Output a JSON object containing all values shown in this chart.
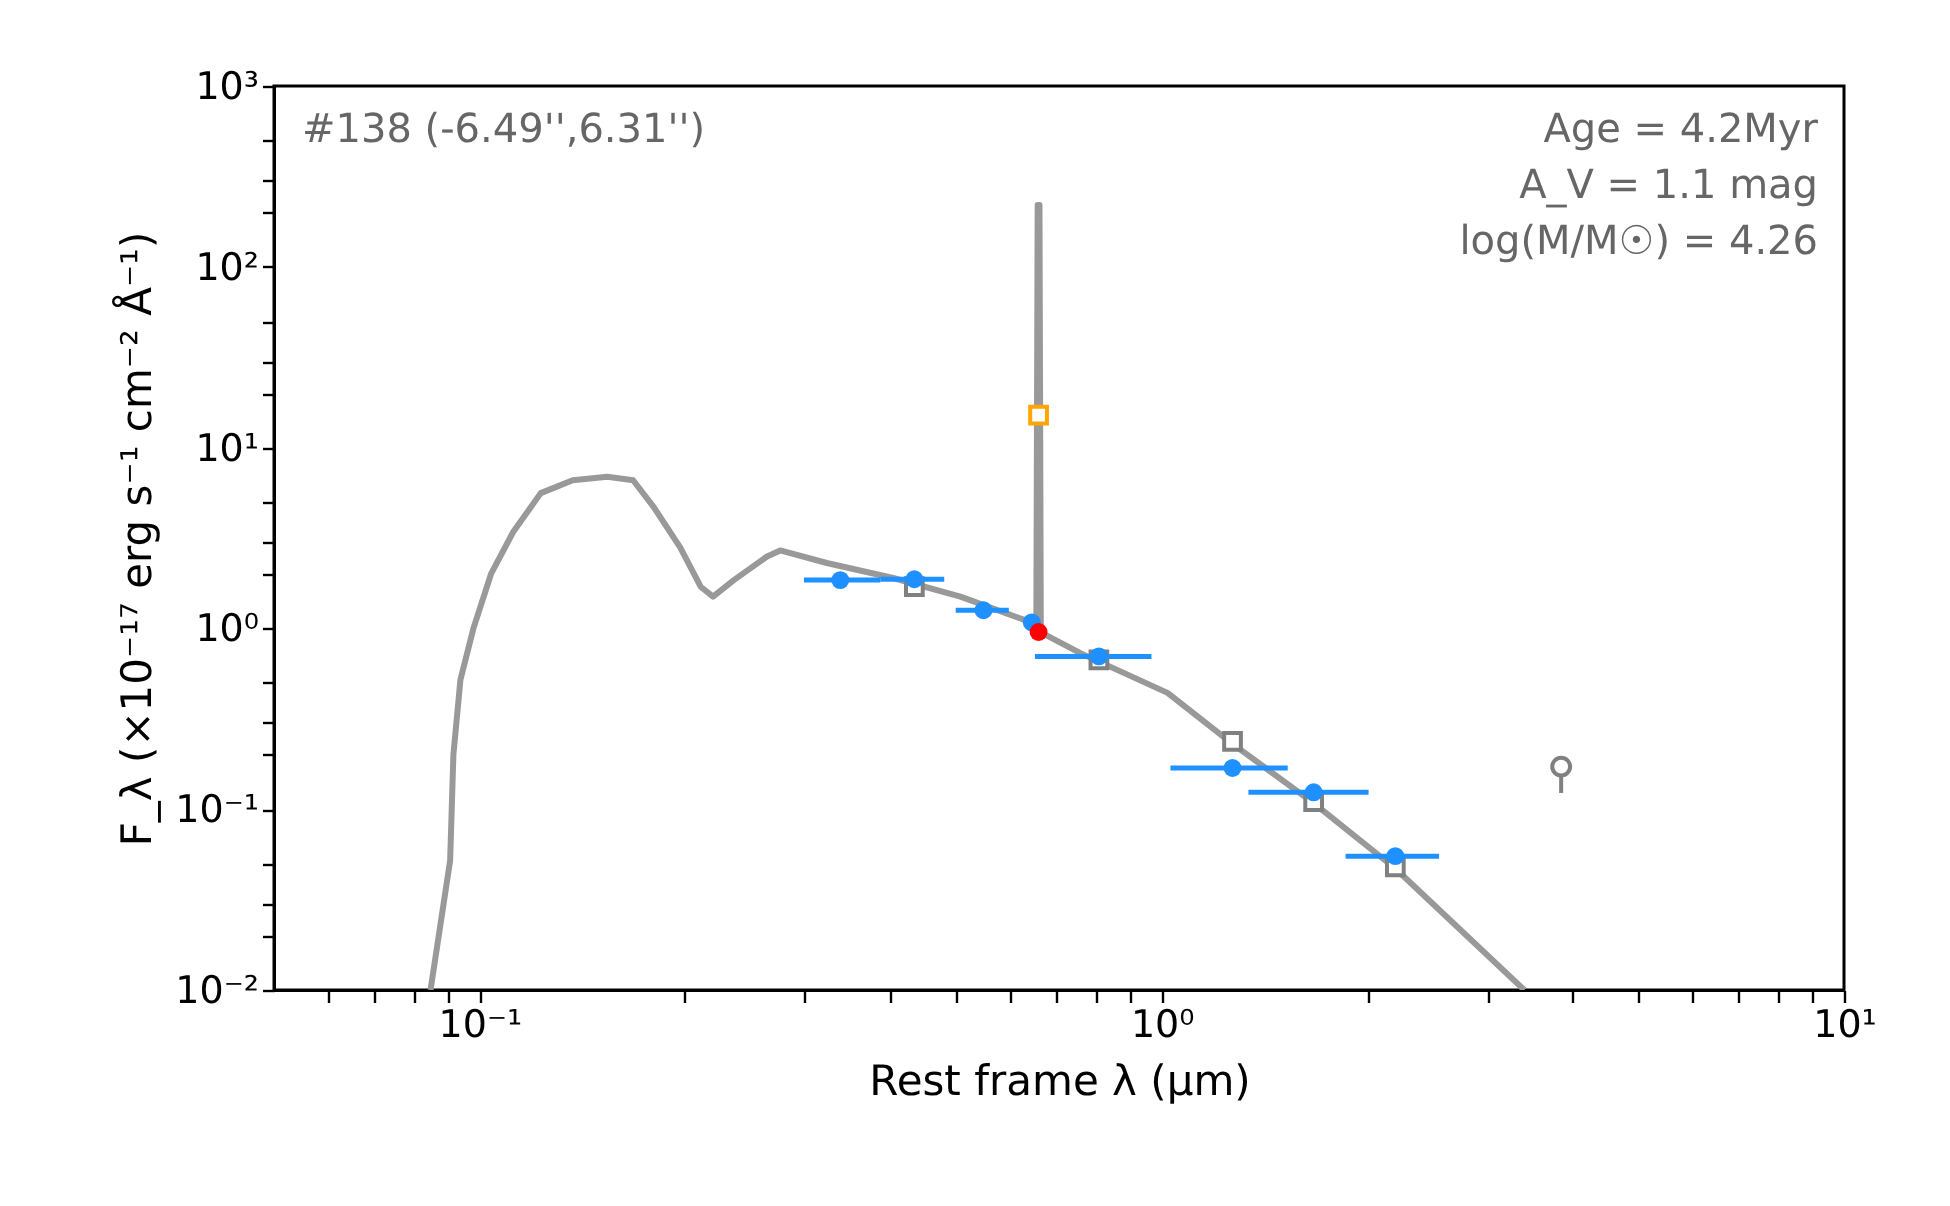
{
  "chart_data": {
    "type": "line",
    "xlabel": "Rest frame λ (μm)",
    "ylabel": "F_λ (×10⁻¹⁷ erg s⁻¹ cm⁻² Å⁻¹)",
    "annotations": [
      "#138 (-6.49'',6.31'')",
      "Age = 4.2Myr",
      "A_V = 1.1 mag",
      "log(M/M☉) = 4.26"
    ],
    "log": "xy",
    "grid": false,
    "xlim": [
      0.05,
      10
    ],
    "ylim": [
      0.01,
      1000
    ],
    "xticks": [
      {
        "value": 0.06,
        "label": null
      },
      {
        "value": 0.07,
        "label": null
      },
      {
        "value": 0.08,
        "label": null
      },
      {
        "value": 0.09,
        "label": null
      },
      {
        "value": 0.1,
        "label": "10⁻¹"
      },
      {
        "value": 0.2,
        "label": null
      },
      {
        "value": 0.3,
        "label": null
      },
      {
        "value": 0.4,
        "label": null
      },
      {
        "value": 0.5,
        "label": null
      },
      {
        "value": 0.6,
        "label": null
      },
      {
        "value": 0.7,
        "label": null
      },
      {
        "value": 0.8,
        "label": null
      },
      {
        "value": 0.9,
        "label": null
      },
      {
        "value": 1,
        "label": "10⁰"
      },
      {
        "value": 2,
        "label": null
      },
      {
        "value": 3,
        "label": null
      },
      {
        "value": 4,
        "label": null
      },
      {
        "value": 5,
        "label": null
      },
      {
        "value": 6,
        "label": null
      },
      {
        "value": 7,
        "label": null
      },
      {
        "value": 8,
        "label": null
      },
      {
        "value": 9,
        "label": null
      },
      {
        "value": 10,
        "label": "10¹"
      }
    ],
    "yticks": [
      {
        "value": 0.01,
        "label": "10⁻²"
      },
      {
        "value": 0.02,
        "label": null
      },
      {
        "value": 0.03,
        "label": null
      },
      {
        "value": 0.05,
        "label": null
      },
      {
        "value": 0.1,
        "label": "10⁻¹"
      },
      {
        "value": 0.2,
        "label": null
      },
      {
        "value": 0.3,
        "label": null
      },
      {
        "value": 0.5,
        "label": null
      },
      {
        "value": 1,
        "label": "10⁰"
      },
      {
        "value": 2,
        "label": null
      },
      {
        "value": 3,
        "label": null
      },
      {
        "value": 5,
        "label": null
      },
      {
        "value": 10,
        "label": "10¹"
      },
      {
        "value": 20,
        "label": null
      },
      {
        "value": 30,
        "label": null
      },
      {
        "value": 50,
        "label": null
      },
      {
        "value": 100,
        "label": "10²"
      },
      {
        "value": 200,
        "label": null
      },
      {
        "value": 300,
        "label": null
      },
      {
        "value": 500,
        "label": null
      },
      {
        "value": 1000,
        "label": "10³"
      }
    ],
    "series": [
      {
        "type": "line",
        "color": "#999999",
        "marker": "none",
        "line_style": "solid",
        "x": [
          0.0848,
          0.0906,
          0.0916,
          0.0938,
          0.098,
          0.104,
          0.112,
          0.123,
          0.137,
          0.154,
          0.168,
          0.18,
          0.197,
          0.211,
          0.22,
          0.236,
          0.264,
          0.276,
          0.323,
          0.404,
          0.507,
          0.635,
          0.655,
          0.658,
          0.662,
          0.665,
          0.76,
          1.02,
          1.27,
          1.67,
          2.2,
          3.4
        ],
        "values": [
          0.01,
          0.052,
          0.2,
          0.52,
          1.0,
          2.0,
          3.4,
          5.6,
          6.6,
          6.9,
          6.6,
          4.7,
          2.8,
          1.7,
          1.5,
          1.85,
          2.5,
          2.7,
          2.3,
          1.9,
          1.5,
          1.1,
          1.0,
          220,
          220,
          0.95,
          0.73,
          0.44,
          0.23,
          0.108,
          0.047,
          0.01
        ]
      },
      {
        "type": "scatter",
        "color": "#808080",
        "marker": "square",
        "x": [
          0.434,
          0.809,
          1.27,
          1.67,
          2.2
        ],
        "values": [
          1.7,
          0.67,
          0.237,
          0.11,
          0.048
        ]
      },
      {
        "type": "scatter",
        "color": "#ffa500",
        "marker": "square",
        "x": [
          0.66
        ],
        "values": [
          15.1
        ]
      },
      {
        "type": "scatter",
        "color": "#1e90ff",
        "marker": "circle",
        "x": [
          0.338,
          0.434,
          0.548,
          0.645,
          0.809,
          1.27,
          1.67,
          2.2
        ],
        "values": [
          1.85,
          1.87,
          1.26,
          1.08,
          0.7,
          0.169,
          0.124,
          0.055
        ],
        "xerrors": [
          [
            0.299,
            0.387
          ],
          [
            0.387,
            0.48
          ],
          [
            0.499,
            0.597
          ],
          null,
          [
            0.652,
            0.966
          ],
          [
            1.03,
            1.53
          ],
          [
            1.34,
            2.01
          ],
          [
            1.86,
            2.55
          ]
        ]
      },
      {
        "type": "scatter",
        "color": "#ff0000",
        "marker": "circle",
        "x": [
          0.66
        ],
        "values": [
          0.955
        ]
      },
      {
        "type": "scatter",
        "color": "#808080",
        "marker": "circle",
        "x": [
          3.85
        ],
        "values": [
          0.172
        ],
        "errors": [
          [
            0.123,
            0.172
          ]
        ]
      }
    ]
  }
}
